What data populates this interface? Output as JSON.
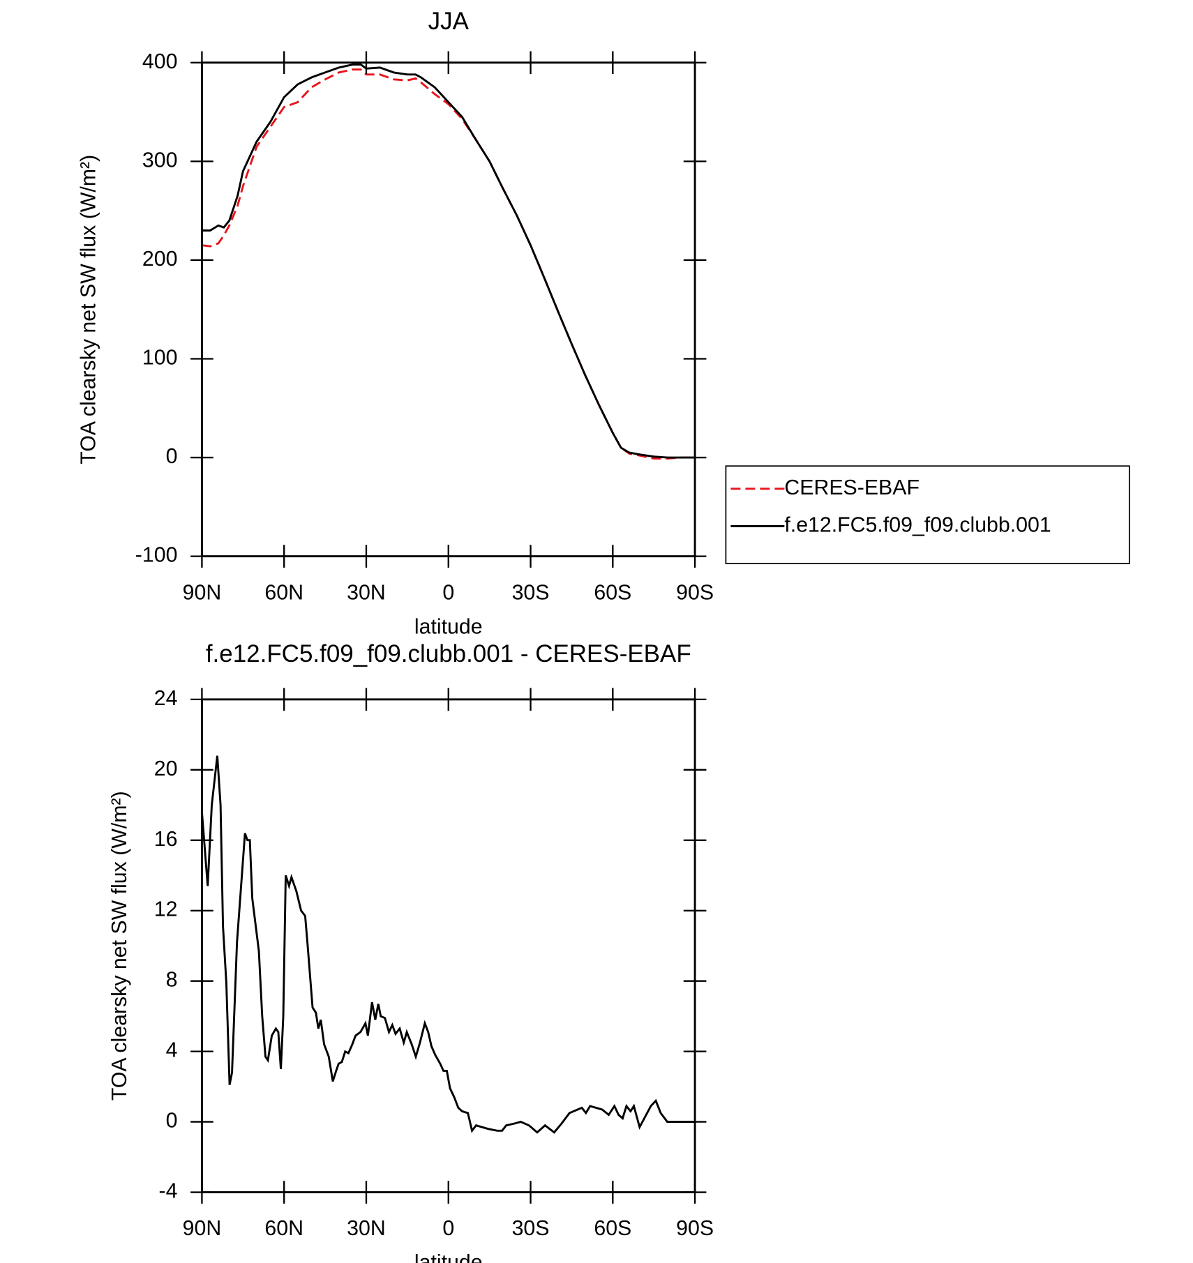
{
  "chart_data": [
    {
      "type": "line",
      "title": "JJA",
      "xlabel": "latitude",
      "ylabel": "TOA clearsky net SW flux (W/m²)",
      "xlim": [
        90,
        -90
      ],
      "xticks": [
        {
          "value": 90,
          "label": "90N"
        },
        {
          "value": 60,
          "label": "60N"
        },
        {
          "value": 30,
          "label": "30N"
        },
        0,
        {
          "value": -30,
          "label": "30S"
        },
        {
          "value": -60,
          "label": "60S"
        },
        {
          "value": -90,
          "label": "90S"
        }
      ],
      "ylim": [
        -100,
        400
      ],
      "yticks": [
        -100,
        0,
        100,
        200,
        300,
        400
      ],
      "legend": "right",
      "x": [
        90,
        87,
        84,
        82,
        80,
        77,
        75,
        70,
        65,
        60,
        55,
        50,
        45,
        40,
        35,
        32,
        30,
        25,
        20,
        15,
        12,
        10,
        5,
        0,
        -5,
        -10,
        -15,
        -20,
        -25,
        -30,
        -35,
        -40,
        -45,
        -50,
        -55,
        -60,
        -63,
        -66,
        -70,
        -75,
        -80,
        -85,
        -90
      ],
      "series": [
        {
          "name": "CERES-EBAF",
          "color": "#e8141c",
          "style": "dashed",
          "values": [
            215,
            214,
            217,
            225,
            235,
            255,
            275,
            315,
            335,
            355,
            360,
            375,
            383,
            390,
            393,
            393,
            388,
            388,
            383,
            382,
            384,
            380,
            368,
            358,
            343,
            322,
            300,
            272,
            245,
            215,
            182,
            148,
            115,
            83,
            53,
            25,
            10,
            4,
            2,
            -1,
            -1,
            0,
            0
          ]
        },
        {
          "name": "f.e12.FC5.f09_f09.clubb.001",
          "color": "#000000",
          "style": "solid",
          "values": [
            230,
            230,
            235,
            233,
            240,
            265,
            290,
            320,
            340,
            365,
            378,
            385,
            390,
            395,
            398,
            398,
            394,
            395,
            390,
            388,
            388,
            385,
            375,
            360,
            345,
            322,
            300,
            272,
            245,
            215,
            182,
            148,
            115,
            83,
            53,
            25,
            10,
            5,
            3,
            1,
            0,
            0,
            0
          ]
        }
      ]
    },
    {
      "type": "line",
      "title": "f.e12.FC5.f09_f09.clubb.001 - CERES-EBAF",
      "xlabel": "latitude",
      "ylabel": "TOA clearsky net SW flux (W/m²)",
      "xlim": [
        90,
        -90
      ],
      "xticks": [
        {
          "value": 90,
          "label": "90N"
        },
        {
          "value": 60,
          "label": "60N"
        },
        {
          "value": 30,
          "label": "30N"
        },
        0,
        {
          "value": -30,
          "label": "30S"
        },
        {
          "value": -60,
          "label": "60S"
        },
        {
          "value": -90,
          "label": "90S"
        }
      ],
      "ylim": [
        -4,
        24
      ],
      "yticks": [
        -4,
        0,
        4,
        8,
        12,
        16,
        20,
        24
      ],
      "x": [
        90,
        87.9,
        86.4,
        84.4,
        83.2,
        82.3,
        81.1,
        79.9,
        79,
        77.2,
        74.3,
        73.4,
        72.5,
        71.6,
        69.2,
        68,
        66.8,
        65.9,
        64.5,
        63,
        62.1,
        61.2,
        60.3,
        59.4,
        58.2,
        57.3,
        55.5,
        53.8,
        52.3,
        51.4,
        49.6,
        48.4,
        47.5,
        46.6,
        45.4,
        43.7,
        42.2,
        41,
        40.1,
        38.9,
        37.7,
        36.5,
        35.1,
        33.9,
        32.1,
        30.3,
        29.4,
        27.9,
        26.7,
        25.6,
        24.7,
        23.2,
        21.7,
        20.5,
        19.3,
        17.8,
        16.3,
        15.2,
        13.4,
        11.9,
        10.4,
        8.6,
        7.4,
        6.2,
        4.8,
        3,
        1.8,
        0.6,
        -0.6,
        -2.1,
        -3.6,
        -5,
        -7.1,
        -8.6,
        -10.1,
        -14.5,
        -17.8,
        -19.6,
        -21.1,
        -24,
        -26.4,
        -29.4,
        -32.4,
        -35.3,
        -38.6,
        -41.3,
        -44.2,
        -48.7,
        -50.2,
        -51.7,
        -56.1,
        -58.5,
        -60.6,
        -62.1,
        -63.6,
        -65,
        -66.5,
        -67.7,
        -69.8,
        -73.9,
        -75.7,
        -77.5,
        -79.9,
        -90
      ],
      "series": [
        {
          "name": "f.e12.FC5.f09_f09.clubb.001 - CERES-EBAF",
          "color": "#000000",
          "style": "solid",
          "values": [
            17.6,
            13.4,
            18,
            20.8,
            18,
            11.1,
            7.9,
            2.1,
            2.8,
            10.2,
            16.4,
            16,
            16,
            12.7,
            9.7,
            6,
            3.7,
            3.5,
            4.9,
            5.3,
            5.1,
            3,
            6,
            14,
            13.4,
            13.9,
            13.1,
            12,
            11.7,
            10,
            6.5,
            6.2,
            5.3,
            5.8,
            4.4,
            3.7,
            2.3,
            2.9,
            3.3,
            3.4,
            4,
            3.9,
            4.4,
            4.9,
            5.1,
            5.6,
            4.9,
            6.8,
            5.8,
            6.7,
            6,
            5.9,
            5.1,
            5.5,
            5,
            5.3,
            4.5,
            5.1,
            4.4,
            3.7,
            4.5,
            5.6,
            5.1,
            4.3,
            3.8,
            3.3,
            2.9,
            2.9,
            1.9,
            1.4,
            0.8,
            0.6,
            0.5,
            -0.5,
            -0.2,
            -0.4,
            -0.5,
            -0.5,
            -0.2,
            -0.1,
            0,
            -0.2,
            -0.6,
            -0.2,
            -0.6,
            -0.1,
            0.5,
            0.8,
            0.5,
            0.9,
            0.7,
            0.4,
            0.9,
            0.4,
            0.2,
            0.9,
            0.6,
            0.9,
            -0.3,
            0.9,
            1.2,
            0.5,
            0,
            0
          ]
        }
      ]
    }
  ]
}
